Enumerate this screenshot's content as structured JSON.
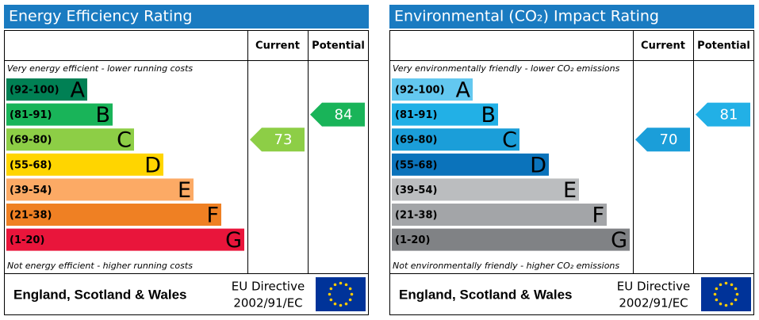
{
  "chart_data": [
    {
      "type": "rating",
      "title": "Energy Efficiency Rating",
      "column_headers": [
        "Current",
        "Potential"
      ],
      "top_note": "Very energy efficient - lower running costs",
      "bottom_note": "Not energy efficient - higher running costs",
      "bands": [
        {
          "range": "(92-100)",
          "letter": "A",
          "color": "#008054"
        },
        {
          "range": "(81-91)",
          "letter": "B",
          "color": "#19b459"
        },
        {
          "range": "(69-80)",
          "letter": "C",
          "color": "#8dce46"
        },
        {
          "range": "(55-68)",
          "letter": "D",
          "color": "#ffd500"
        },
        {
          "range": "(39-54)",
          "letter": "E",
          "color": "#fcaa65"
        },
        {
          "range": "(21-38)",
          "letter": "F",
          "color": "#ef8023"
        },
        {
          "range": "(1-20)",
          "letter": "G",
          "color": "#e9153b"
        }
      ],
      "current": 73,
      "potential": 84,
      "footer": "England, Scotland & Wales",
      "directive": [
        "EU Directive",
        "2002/91/EC"
      ]
    },
    {
      "type": "rating",
      "title": "Environmental (CO₂) Impact Rating",
      "column_headers": [
        "Current",
        "Potential"
      ],
      "top_note": "Very environmentally friendly - lower CO₂ emissions",
      "bottom_note": "Not environmentally friendly - higher CO₂ emissions",
      "bands": [
        {
          "range": "(92-100)",
          "letter": "A",
          "color": "#63c8f0"
        },
        {
          "range": "(81-91)",
          "letter": "B",
          "color": "#22b0e6"
        },
        {
          "range": "(69-80)",
          "letter": "C",
          "color": "#1b9ed9"
        },
        {
          "range": "(55-68)",
          "letter": "D",
          "color": "#0b73bb"
        },
        {
          "range": "(39-54)",
          "letter": "E",
          "color": "#bbbdbf"
        },
        {
          "range": "(21-38)",
          "letter": "F",
          "color": "#a3a5a8"
        },
        {
          "range": "(1-20)",
          "letter": "G",
          "color": "#808285"
        }
      ],
      "current": 70,
      "potential": 81,
      "footer": "England, Scotland & Wales",
      "directive": [
        "EU Directive",
        "2002/91/EC"
      ]
    }
  ]
}
